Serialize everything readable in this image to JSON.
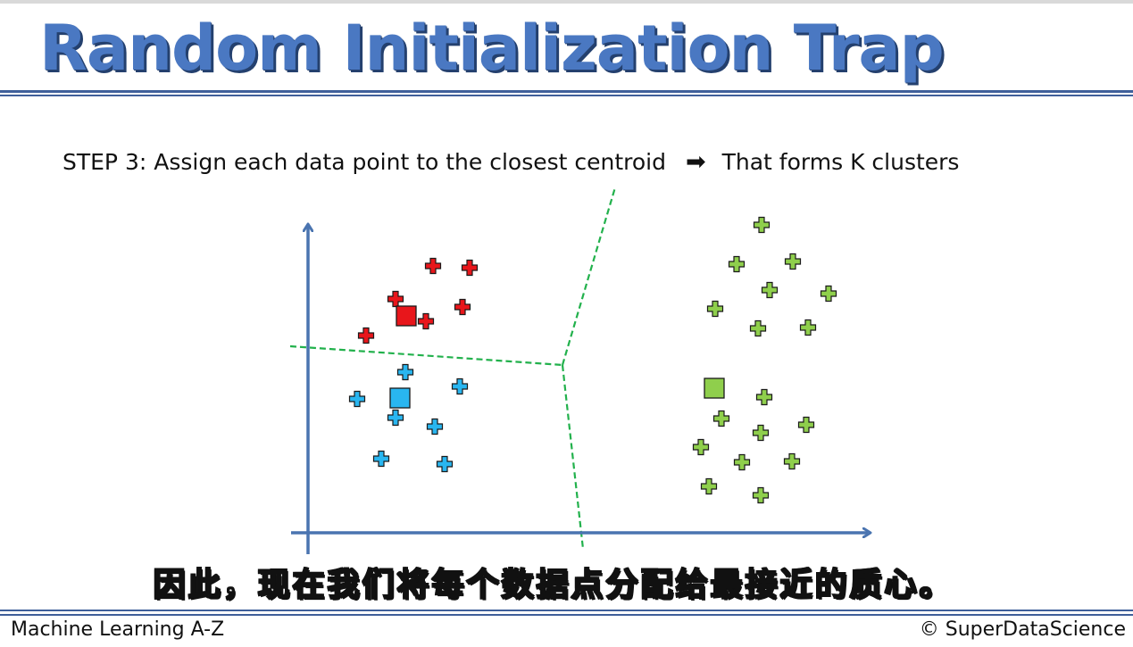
{
  "title": "Random Initialization Trap",
  "step": {
    "label": "STEP 3: Assign each data point to the closest centroid",
    "arrow": "➡",
    "result": "That forms K clusters"
  },
  "subtitle": "因此，现在我们将每个数据点分配给最接近的质心。",
  "footer": {
    "left": "Machine Learning A-Z",
    "right": "© SuperDataScience"
  },
  "colors": {
    "title": "#4a78c2",
    "axis": "#4a74b0",
    "boundary": "#22b14c",
    "red": "#e8161b",
    "blue": "#29b6f0",
    "green": "#8fcf4c",
    "outline": "#1a1a1a"
  },
  "clusters": [
    {
      "name": "red",
      "color": "#e8161b",
      "centroid": [
        455,
        354
      ],
      "points": [
        [
          485,
          298
        ],
        [
          526,
          300
        ],
        [
          443,
          335
        ],
        [
          518,
          344
        ],
        [
          477,
          360
        ],
        [
          410,
          376
        ]
      ]
    },
    {
      "name": "blue",
      "color": "#29b6f0",
      "centroid": [
        448,
        446
      ],
      "points": [
        [
          454,
          417
        ],
        [
          515,
          433
        ],
        [
          400,
          447
        ],
        [
          443,
          468
        ],
        [
          487,
          478
        ],
        [
          427,
          514
        ],
        [
          498,
          520
        ]
      ]
    },
    {
      "name": "green",
      "color": "#8fcf4c",
      "centroid": [
        800,
        435
      ],
      "points": [
        [
          853,
          252
        ],
        [
          825,
          296
        ],
        [
          888,
          293
        ],
        [
          862,
          325
        ],
        [
          928,
          329
        ],
        [
          801,
          346
        ],
        [
          849,
          368
        ],
        [
          905,
          367
        ],
        [
          856,
          445
        ],
        [
          808,
          469
        ],
        [
          903,
          476
        ],
        [
          852,
          485
        ],
        [
          785,
          501
        ],
        [
          831,
          518
        ],
        [
          887,
          517
        ],
        [
          794,
          545
        ],
        [
          852,
          555
        ]
      ]
    }
  ],
  "boundaries": [
    [
      [
        325,
        388
      ],
      [
        630,
        409
      ]
    ],
    [
      [
        630,
        409
      ],
      [
        689,
        210
      ]
    ],
    [
      [
        630,
        409
      ],
      [
        653,
        615
      ]
    ]
  ]
}
